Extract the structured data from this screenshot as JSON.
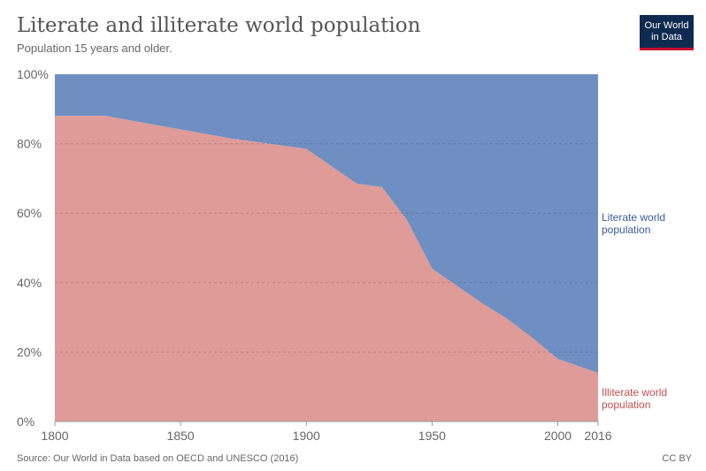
{
  "header": {
    "title": "Literate and illiterate world population",
    "subtitle": "Population 15 years and older."
  },
  "logo": {
    "line1": "Our World",
    "line2": "in Data"
  },
  "footer": {
    "source": "Source: Our World in Data based on OECD and UNESCO (2016)",
    "license": "CC BY"
  },
  "colors": {
    "literate": "#6f8fc2",
    "illiterate": "#de9b97",
    "literate_label": "#3b5a9a",
    "illiterate_label": "#c0504d"
  },
  "chart_data": {
    "type": "area",
    "stacked": true,
    "normalized": true,
    "x": [
      1800,
      1820,
      1870,
      1900,
      1920,
      1930,
      1940,
      1950,
      1960,
      1970,
      1980,
      1990,
      2000,
      2010,
      2016
    ],
    "series": [
      {
        "name_line1": "Illiterate world",
        "name_line2": "population",
        "values": [
          88,
          88,
          81.5,
          78.5,
          68.5,
          67.5,
          58,
          44,
          39,
          34,
          29.5,
          24,
          18,
          15.5,
          14
        ]
      },
      {
        "name_line1": "Literate world",
        "name_line2": "population",
        "values": [
          12,
          12,
          18.5,
          21.5,
          31.5,
          32.5,
          42,
          56,
          61,
          66,
          70.5,
          76,
          82,
          84.5,
          86
        ]
      }
    ],
    "x_ticks": [
      1800,
      1850,
      1900,
      1950,
      2000,
      2016
    ],
    "y_ticks": [
      0,
      20,
      40,
      60,
      80,
      100
    ],
    "y_tick_labels": [
      "0%",
      "20%",
      "40%",
      "60%",
      "80%",
      "100%"
    ],
    "xlim": [
      1800,
      2016
    ],
    "ylim": [
      0,
      100
    ],
    "grid": "horizontal dashed"
  }
}
